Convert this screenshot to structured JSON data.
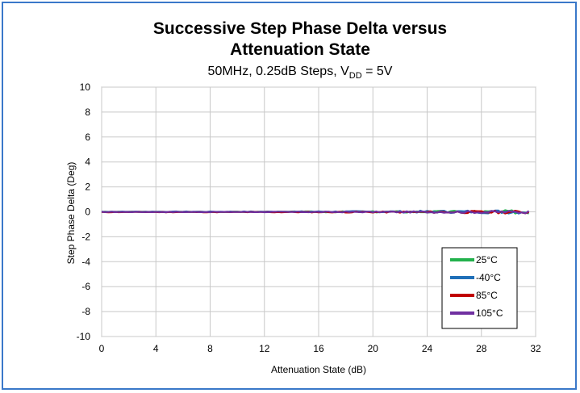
{
  "chart_data": {
    "type": "line",
    "title_line1": "Successive Step Phase Delta versus",
    "title_line2": "Attenuation State",
    "subtitle_prefix": "50MHz, 0.25dB Steps, V",
    "subtitle_sub": "DD",
    "subtitle_suffix": " = 5V",
    "xlabel": "Attenuation State (dB)",
    "ylabel": "Step Phase Delta (Deg)",
    "xlim": [
      0,
      32
    ],
    "ylim": [
      -10,
      10
    ],
    "xticks": [
      "0",
      "4",
      "8",
      "12",
      "16",
      "20",
      "24",
      "28",
      "32"
    ],
    "yticks": [
      "10",
      "8",
      "6",
      "4",
      "2",
      "0",
      "-2",
      "-4",
      "-6",
      "-8",
      "-10"
    ],
    "grid": true,
    "legend_position": "bottom-right",
    "x_step": 0.25,
    "x_max": 31.5,
    "series": [
      {
        "name": "25°C",
        "color": "#22b14c",
        "base": 0.0,
        "noise_start": 0.02,
        "noise_end": 0.16,
        "seed": 3
      },
      {
        "name": "-40°C",
        "color": "#1f6fb8",
        "base": 0.01,
        "noise_start": 0.02,
        "noise_end": 0.18,
        "seed": 7
      },
      {
        "name": "85°C",
        "color": "#c00000",
        "base": -0.02,
        "noise_start": 0.02,
        "noise_end": 0.14,
        "seed": 11
      },
      {
        "name": "105°C",
        "color": "#7030a0",
        "base": -0.01,
        "noise_start": 0.02,
        "noise_end": 0.12,
        "seed": 17
      }
    ]
  }
}
